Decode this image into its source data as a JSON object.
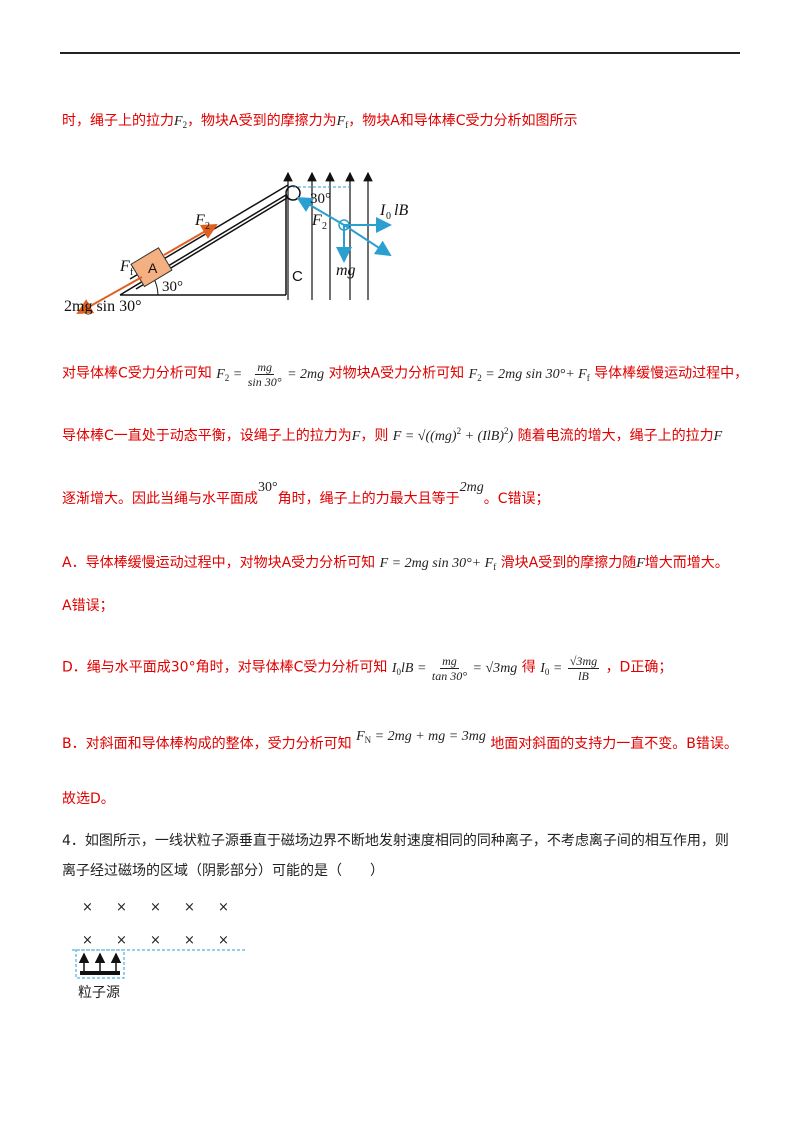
{
  "line1": {
    "a": "时，绳子上的拉力",
    "b": "，物块A受到的摩擦力为",
    "c": "，物块A和导体棒C受力分析如图所示"
  },
  "figure": {
    "block_label": "A",
    "angle_label": "30°",
    "angle_top": "30°",
    "f2_left": "F",
    "f2_right": "F",
    "ff": "F",
    "c_label": "C",
    "mg_label": "mg",
    "i0lb_label": "I",
    "i0lb_tail": "lB",
    "weight_comp": "2mg sin 30°"
  },
  "line2": {
    "a": "对导体棒C受力分析可知",
    "b": "对物块A受力分析可知",
    "c": "导体棒缓慢运动过程中，"
  },
  "line3": {
    "a": "导体棒C一直处于动态平衡，设绳子上的拉力为",
    "b": "，则",
    "c": "随着电流的增大，绳子上的拉力",
    "d": "F"
  },
  "line4": {
    "a": "逐渐增大。因此当绳与水平面成",
    "angle": "30°",
    "b": "角时，绳子上的力最大且等于",
    "val": "2mg",
    "c": "。C错误；"
  },
  "lineA": {
    "a": "A．导体棒缓慢运动过程中，对物块A受力分析可知",
    "b": "滑块A受到的摩擦力随",
    "f": "F",
    "c": "增大而增大。",
    "d": "A错误；"
  },
  "lineD": {
    "a": "D．绳与水平面成30°角时，对导体棒C受力分析可知",
    "b": "得",
    "c": "，D正确；"
  },
  "lineB": {
    "a": "B．对斜面和导体棒构成的整体，受力分析可知",
    "b": "地面对斜面的支持力一直不变。B错误。"
  },
  "answer": "故选D。",
  "q4": {
    "line1": "4．如图所示，一线状粒子源垂直于磁场边界不断地发射速度相同的同种离子，不考虑离子间的相互作用，则",
    "line2": "离子经过磁场的区域（阴影部分）可能的是（　　）",
    "source_label": "粒子源",
    "cross": "×"
  }
}
